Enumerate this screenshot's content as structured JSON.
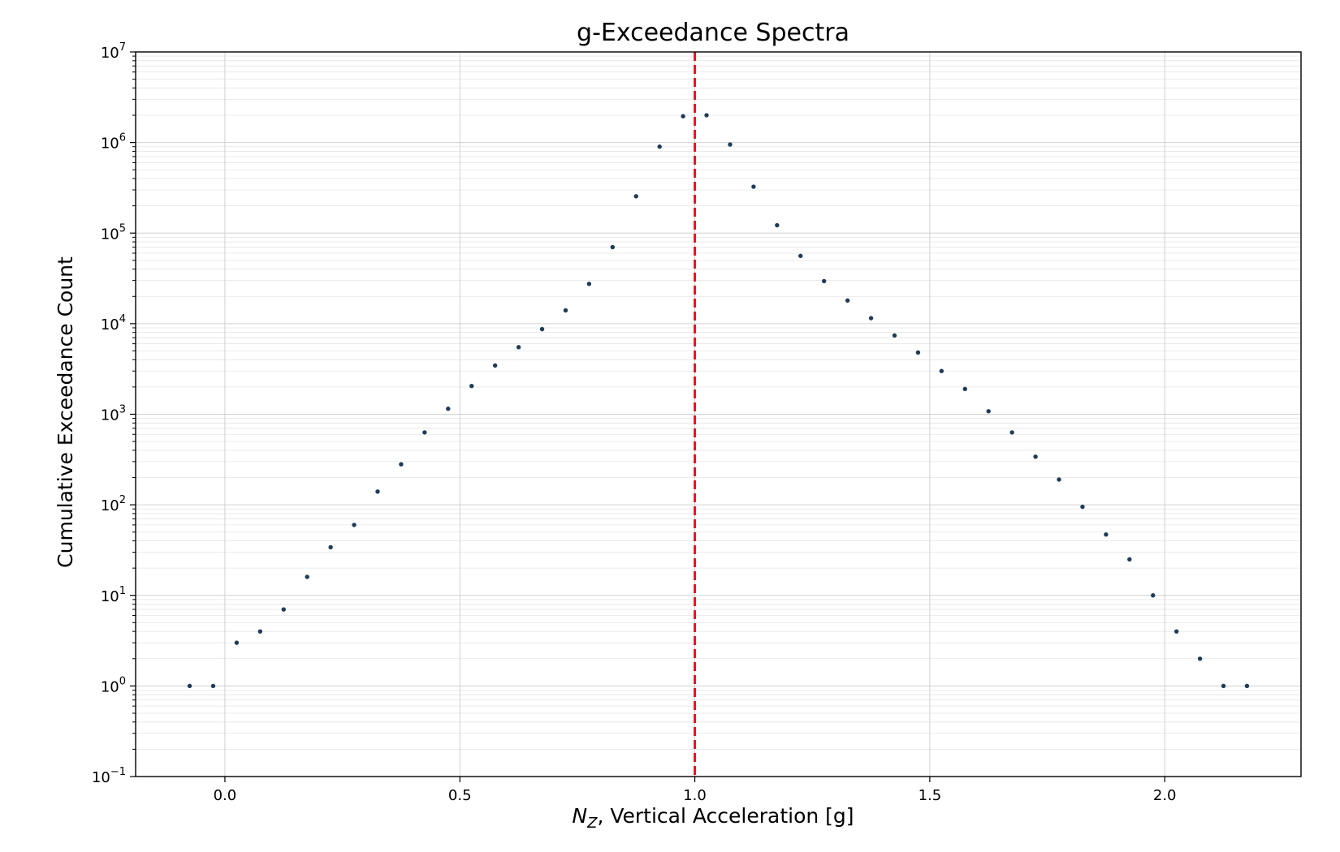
{
  "chart_data": {
    "type": "scatter",
    "title": "g-Exceedance Spectra",
    "xlabel_symbol": "N",
    "xlabel_subscript": "Z",
    "xlabel_rest": ", Vertical Acceleration [g]",
    "ylabel": "Cumulative Exceedance Count",
    "xlim": [
      -0.19,
      2.29
    ],
    "ylim_log10": [
      -1,
      7
    ],
    "y_scale": "log",
    "grid": true,
    "x_ticks": [
      0.0,
      0.5,
      1.0,
      1.5,
      2.0
    ],
    "x_tick_labels": [
      "0.0",
      "0.5",
      "1.0",
      "1.5",
      "2.0"
    ],
    "y_tick_exponents": [
      -1,
      0,
      1,
      2,
      3,
      4,
      5,
      6,
      7
    ],
    "y_tick_base": "10",
    "reference_line": {
      "x": 1.0,
      "color": "#e8141c",
      "style": "dashed"
    },
    "marker_color": "#1f3b57",
    "series": [
      {
        "x": [
          -0.075,
          -0.025,
          0.025,
          0.075,
          0.125,
          0.175,
          0.225,
          0.275,
          0.325,
          0.375,
          0.425,
          0.475,
          0.525,
          0.575,
          0.625,
          0.675,
          0.725,
          0.775,
          0.825,
          0.875,
          0.925,
          0.975,
          1.025,
          1.075,
          1.125,
          1.175,
          1.225,
          1.275,
          1.325,
          1.375,
          1.425,
          1.475,
          1.525,
          1.575,
          1.625,
          1.675,
          1.725,
          1.775,
          1.825,
          1.875,
          1.925,
          1.975,
          2.025,
          2.075,
          2.125,
          2.175
        ],
        "y": [
          1,
          1,
          3,
          4,
          7,
          16,
          34,
          60,
          140,
          280,
          630,
          1150,
          2050,
          3450,
          5500,
          8700,
          14000,
          27500,
          70000,
          255000,
          900000,
          1950000,
          2000000,
          950000,
          325000,
          122000,
          56000,
          29500,
          18000,
          11500,
          7400,
          4800,
          3000,
          1900,
          1080,
          630,
          340,
          190,
          95,
          47,
          25,
          10,
          4,
          2,
          1,
          1
        ]
      }
    ]
  }
}
